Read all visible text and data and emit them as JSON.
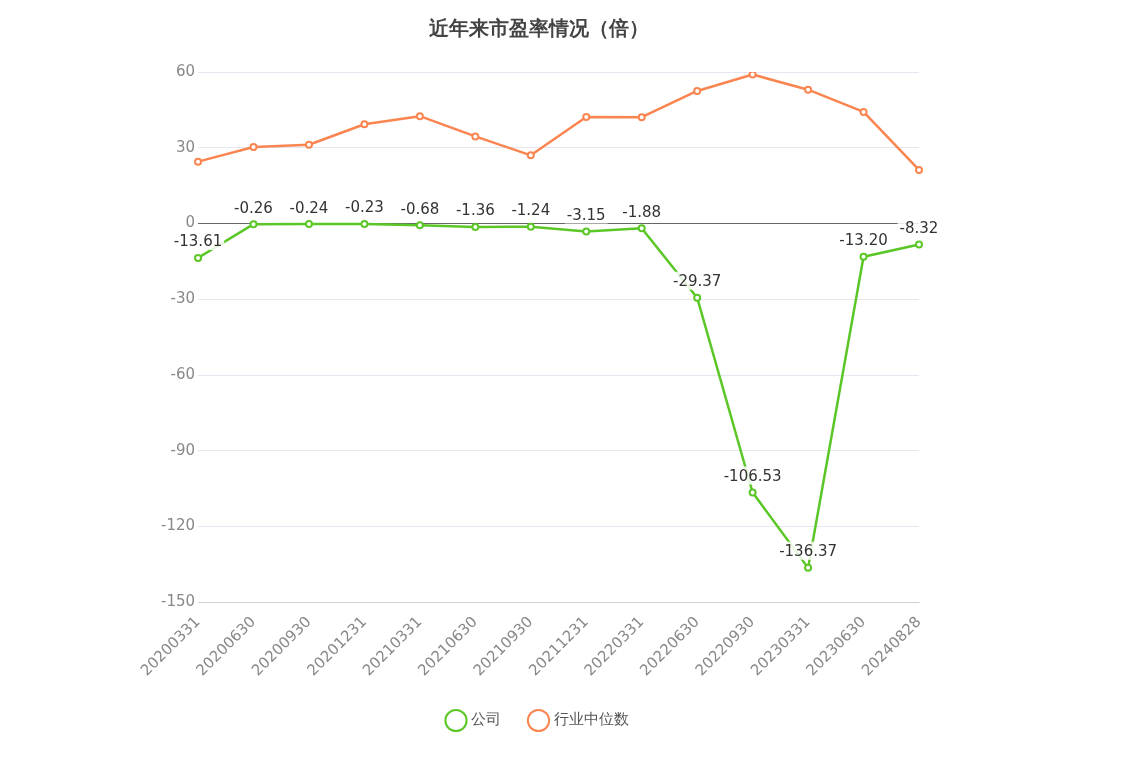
{
  "chart_data": {
    "type": "line",
    "title": "近年来市盈率情况（倍）",
    "categories": [
      "20200331",
      "20200630",
      "20200930",
      "20201231",
      "20210331",
      "20210630",
      "20210930",
      "20211231",
      "20220331",
      "20220630",
      "20220930",
      "20230331",
      "20230630",
      "20240828"
    ],
    "series": [
      {
        "name": "公司",
        "color": "#5ac727",
        "values": [
          -13.61,
          -0.26,
          -0.24,
          -0.23,
          -0.68,
          -1.36,
          -1.24,
          -3.15,
          -1.88,
          -29.37,
          -106.53,
          -136.37,
          -13.2,
          -8.32
        ],
        "value_labels": [
          "-13.61",
          "-0.26",
          "-0.24",
          "-0.23",
          "-0.68",
          "-1.36",
          "-1.24",
          "-3.15",
          "-1.88",
          "-29.37",
          "-106.53",
          "-136.37",
          "-13.20",
          "-8.32"
        ]
      },
      {
        "name": "行业中位数",
        "color": "#fa8550",
        "values": [
          24.5,
          30.3,
          31.2,
          39.3,
          42.5,
          34.5,
          27,
          42.2,
          42.1,
          52.5,
          59,
          53,
          44.2,
          21.2
        ]
      }
    ],
    "ylim": [
      -150,
      60
    ],
    "yticks": [
      -150,
      -120,
      -90,
      -60,
      -30,
      0,
      30,
      60
    ],
    "grid": "y",
    "legend": "bottom",
    "marker": "circle",
    "line_style": "solid"
  }
}
